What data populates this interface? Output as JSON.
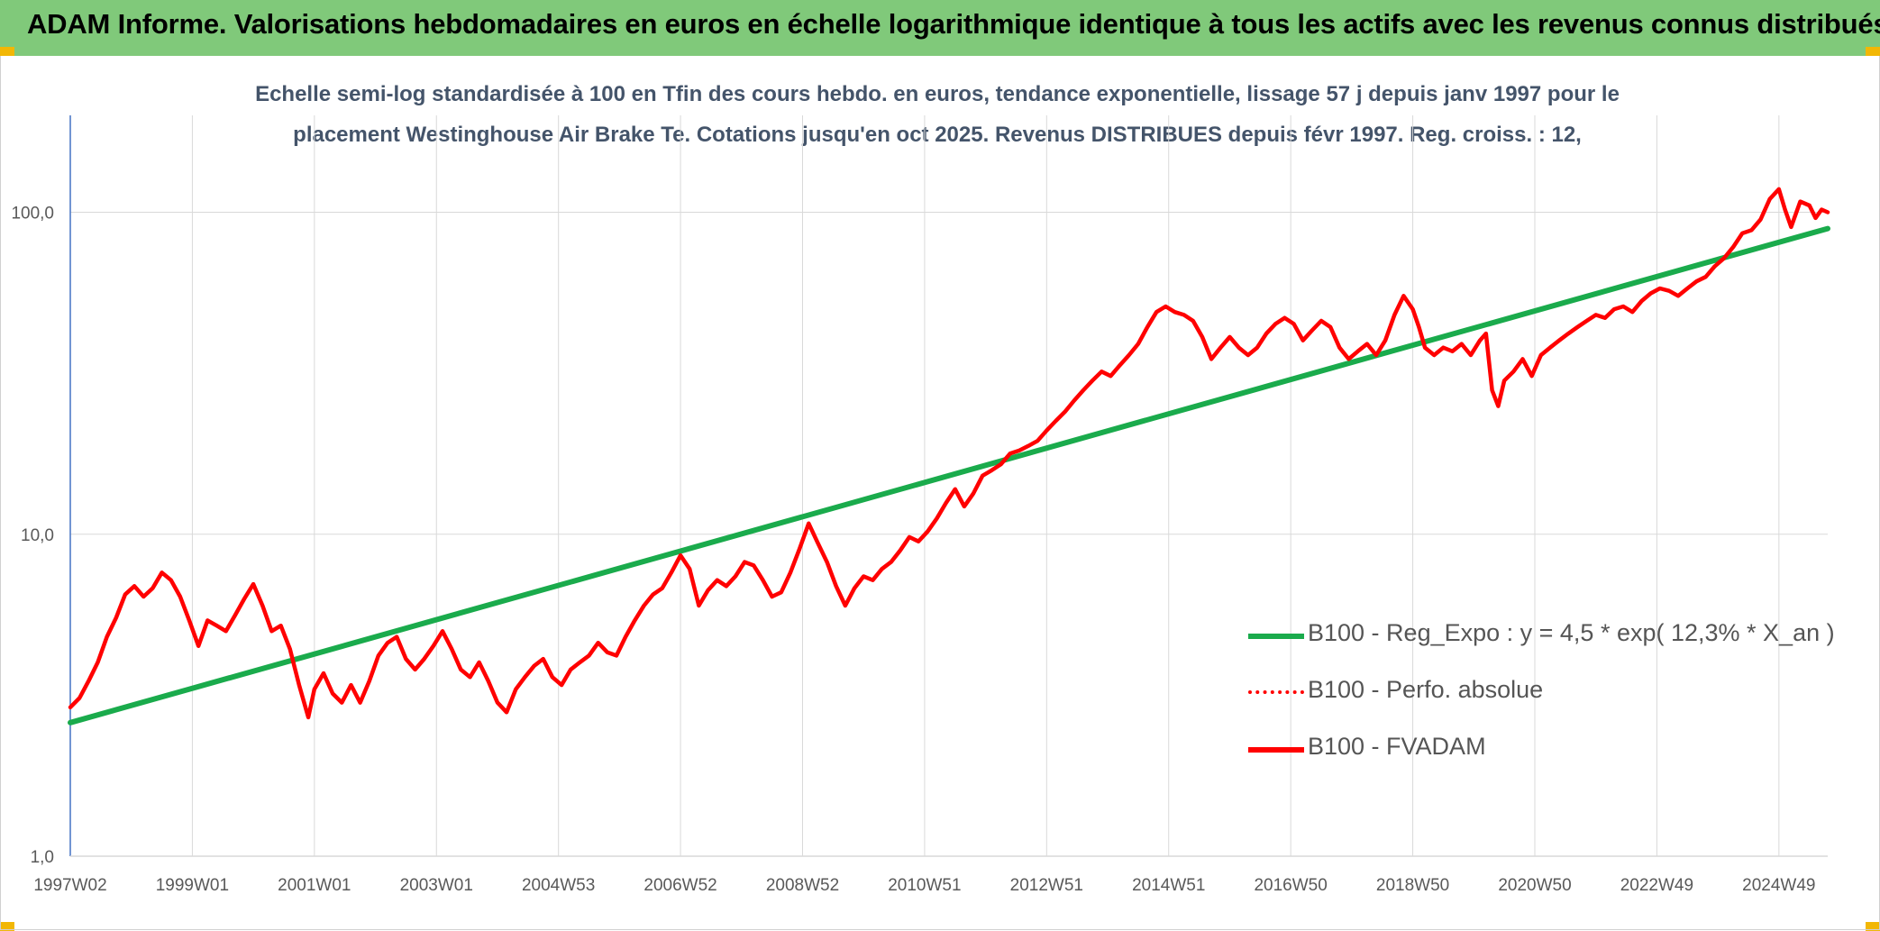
{
  "header": {
    "title": "ADAM Informe. Valorisations hebdomadaires en euros en échelle logarithmique identique à tous les actifs avec les revenus connus distribués"
  },
  "colors": {
    "banner": "#80c97a",
    "corner": "#f2b705",
    "regression": "#1aab4c",
    "fvadam": "#ff0000",
    "perfo": "#ff0000",
    "grid": "#d9d9d9",
    "axis": "#4472c4",
    "text": "#595959"
  },
  "chart_data": {
    "type": "line",
    "title_line1": "Echelle semi-log standardisée à 100 en Tfin des cours hebdo. en euros, tendance exponentielle, lissage 57 j depuis janv 1997 pour le",
    "title_line2": "placement Westinghouse Air Brake Te. Cotations jusqu'en oct 2025. Revenus DISTRIBUES depuis févr 1997. Reg. croiss. : 12,",
    "y_scale": "log",
    "ylim": [
      1,
      200
    ],
    "y_ticks": [
      {
        "value": 1,
        "label": "1,0"
      },
      {
        "value": 10,
        "label": "10,0"
      },
      {
        "value": 100,
        "label": "100,0"
      }
    ],
    "x_range": [
      1997.0,
      2025.8
    ],
    "x_ticks": [
      {
        "x": 1997.0,
        "label": "1997W02"
      },
      {
        "x": 1999.0,
        "label": "1999W01"
      },
      {
        "x": 2001.0,
        "label": "2001W01"
      },
      {
        "x": 2003.0,
        "label": "2003W01"
      },
      {
        "x": 2005.0,
        "label": "2004W53"
      },
      {
        "x": 2007.0,
        "label": "2006W52"
      },
      {
        "x": 2009.0,
        "label": "2008W52"
      },
      {
        "x": 2011.0,
        "label": "2010W51"
      },
      {
        "x": 2013.0,
        "label": "2012W51"
      },
      {
        "x": 2015.0,
        "label": "2014W51"
      },
      {
        "x": 2017.0,
        "label": "2016W50"
      },
      {
        "x": 2019.0,
        "label": "2018W50"
      },
      {
        "x": 2021.0,
        "label": "2020W50"
      },
      {
        "x": 2023.0,
        "label": "2022W49"
      },
      {
        "x": 2025.0,
        "label": "2024W49"
      }
    ],
    "grid": true,
    "legend_position": "bottom-right",
    "series": [
      {
        "name": "B100 - Reg_Expo : y = 4,5 * exp( 12,3% *  X_an )",
        "style": "solid-thick",
        "color": "#1aab4c",
        "points": [
          [
            1997.0,
            2.6
          ],
          [
            2025.8,
            89
          ]
        ]
      },
      {
        "name": "B100 - Perfo. absolue",
        "style": "dotted",
        "color": "#ff0000",
        "points": []
      },
      {
        "name": "B100 - FVADAM",
        "style": "solid",
        "color": "#ff0000",
        "points": [
          [
            1997.0,
            2.9
          ],
          [
            1997.15,
            3.1
          ],
          [
            1997.3,
            3.5
          ],
          [
            1997.45,
            4.0
          ],
          [
            1997.6,
            4.8
          ],
          [
            1997.75,
            5.5
          ],
          [
            1997.9,
            6.5
          ],
          [
            1998.05,
            6.9
          ],
          [
            1998.2,
            6.4
          ],
          [
            1998.35,
            6.8
          ],
          [
            1998.5,
            7.6
          ],
          [
            1998.65,
            7.2
          ],
          [
            1998.8,
            6.4
          ],
          [
            1998.95,
            5.4
          ],
          [
            1999.1,
            4.5
          ],
          [
            1999.25,
            5.4
          ],
          [
            1999.4,
            5.2
          ],
          [
            1999.55,
            5.0
          ],
          [
            1999.7,
            5.6
          ],
          [
            1999.85,
            6.3
          ],
          [
            2000.0,
            7.0
          ],
          [
            2000.15,
            6.0
          ],
          [
            2000.3,
            5.0
          ],
          [
            2000.45,
            5.2
          ],
          [
            2000.6,
            4.4
          ],
          [
            2000.75,
            3.4
          ],
          [
            2000.9,
            2.7
          ],
          [
            2001.0,
            3.3
          ],
          [
            2001.15,
            3.7
          ],
          [
            2001.3,
            3.2
          ],
          [
            2001.45,
            3.0
          ],
          [
            2001.6,
            3.4
          ],
          [
            2001.75,
            3.0
          ],
          [
            2001.9,
            3.5
          ],
          [
            2002.05,
            4.2
          ],
          [
            2002.2,
            4.6
          ],
          [
            2002.35,
            4.8
          ],
          [
            2002.5,
            4.1
          ],
          [
            2002.65,
            3.8
          ],
          [
            2002.8,
            4.1
          ],
          [
            2002.95,
            4.5
          ],
          [
            2003.1,
            5.0
          ],
          [
            2003.25,
            4.4
          ],
          [
            2003.4,
            3.8
          ],
          [
            2003.55,
            3.6
          ],
          [
            2003.7,
            4.0
          ],
          [
            2003.85,
            3.5
          ],
          [
            2004.0,
            3.0
          ],
          [
            2004.15,
            2.8
          ],
          [
            2004.3,
            3.3
          ],
          [
            2004.45,
            3.6
          ],
          [
            2004.6,
            3.9
          ],
          [
            2004.75,
            4.1
          ],
          [
            2004.9,
            3.6
          ],
          [
            2005.05,
            3.4
          ],
          [
            2005.2,
            3.8
          ],
          [
            2005.35,
            4.0
          ],
          [
            2005.5,
            4.2
          ],
          [
            2005.65,
            4.6
          ],
          [
            2005.8,
            4.3
          ],
          [
            2005.95,
            4.2
          ],
          [
            2006.1,
            4.8
          ],
          [
            2006.25,
            5.4
          ],
          [
            2006.4,
            6.0
          ],
          [
            2006.55,
            6.5
          ],
          [
            2006.7,
            6.8
          ],
          [
            2006.85,
            7.6
          ],
          [
            2007.0,
            8.6
          ],
          [
            2007.15,
            7.8
          ],
          [
            2007.3,
            6.0
          ],
          [
            2007.45,
            6.7
          ],
          [
            2007.6,
            7.2
          ],
          [
            2007.75,
            6.9
          ],
          [
            2007.9,
            7.4
          ],
          [
            2008.05,
            8.2
          ],
          [
            2008.2,
            8.0
          ],
          [
            2008.35,
            7.2
          ],
          [
            2008.5,
            6.4
          ],
          [
            2008.65,
            6.6
          ],
          [
            2008.8,
            7.6
          ],
          [
            2008.95,
            9.0
          ],
          [
            2009.1,
            10.8
          ],
          [
            2009.25,
            9.4
          ],
          [
            2009.4,
            8.2
          ],
          [
            2009.55,
            6.9
          ],
          [
            2009.7,
            6.0
          ],
          [
            2009.85,
            6.8
          ],
          [
            2010.0,
            7.4
          ],
          [
            2010.15,
            7.2
          ],
          [
            2010.3,
            7.8
          ],
          [
            2010.45,
            8.2
          ],
          [
            2010.6,
            8.9
          ],
          [
            2010.75,
            9.8
          ],
          [
            2010.9,
            9.5
          ],
          [
            2011.05,
            10.2
          ],
          [
            2011.2,
            11.2
          ],
          [
            2011.35,
            12.5
          ],
          [
            2011.5,
            13.8
          ],
          [
            2011.65,
            12.2
          ],
          [
            2011.8,
            13.4
          ],
          [
            2011.95,
            15.2
          ],
          [
            2012.1,
            15.8
          ],
          [
            2012.25,
            16.5
          ],
          [
            2012.4,
            17.8
          ],
          [
            2012.55,
            18.2
          ],
          [
            2012.7,
            18.8
          ],
          [
            2012.85,
            19.5
          ],
          [
            2013.0,
            21.0
          ],
          [
            2013.15,
            22.5
          ],
          [
            2013.3,
            24.0
          ],
          [
            2013.45,
            26.0
          ],
          [
            2013.6,
            28.0
          ],
          [
            2013.75,
            30.0
          ],
          [
            2013.9,
            32.0
          ],
          [
            2014.05,
            31.0
          ],
          [
            2014.2,
            33.5
          ],
          [
            2014.35,
            36.0
          ],
          [
            2014.5,
            39.0
          ],
          [
            2014.65,
            44.0
          ],
          [
            2014.8,
            49.0
          ],
          [
            2014.95,
            51.0
          ],
          [
            2015.1,
            49.0
          ],
          [
            2015.25,
            48.0
          ],
          [
            2015.4,
            46.0
          ],
          [
            2015.55,
            41.0
          ],
          [
            2015.7,
            35.0
          ],
          [
            2015.85,
            38.0
          ],
          [
            2016.0,
            41.0
          ],
          [
            2016.15,
            38.0
          ],
          [
            2016.3,
            36.0
          ],
          [
            2016.45,
            38.0
          ],
          [
            2016.6,
            42.0
          ],
          [
            2016.75,
            45.0
          ],
          [
            2016.9,
            47.0
          ],
          [
            2017.05,
            45.0
          ],
          [
            2017.2,
            40.0
          ],
          [
            2017.35,
            43.0
          ],
          [
            2017.5,
            46.0
          ],
          [
            2017.65,
            44.0
          ],
          [
            2017.8,
            38.0
          ],
          [
            2017.95,
            35.0
          ],
          [
            2018.1,
            37.0
          ],
          [
            2018.25,
            39.0
          ],
          [
            2018.4,
            36.0
          ],
          [
            2018.55,
            40.0
          ],
          [
            2018.7,
            48.0
          ],
          [
            2018.85,
            55.0
          ],
          [
            2019.0,
            50.0
          ],
          [
            2019.1,
            44.0
          ],
          [
            2019.2,
            38.0
          ],
          [
            2019.35,
            36.0
          ],
          [
            2019.5,
            38.0
          ],
          [
            2019.65,
            37.0
          ],
          [
            2019.8,
            39.0
          ],
          [
            2019.95,
            36.0
          ],
          [
            2020.1,
            40.0
          ],
          [
            2020.2,
            42.0
          ],
          [
            2020.3,
            28.0
          ],
          [
            2020.4,
            25.0
          ],
          [
            2020.5,
            30.0
          ],
          [
            2020.65,
            32.0
          ],
          [
            2020.8,
            35.0
          ],
          [
            2020.95,
            31.0
          ],
          [
            2021.1,
            36.0
          ],
          [
            2021.25,
            38.0
          ],
          [
            2021.4,
            40.0
          ],
          [
            2021.55,
            42.0
          ],
          [
            2021.7,
            44.0
          ],
          [
            2021.85,
            46.0
          ],
          [
            2022.0,
            48.0
          ],
          [
            2022.15,
            47.0
          ],
          [
            2022.3,
            50.0
          ],
          [
            2022.45,
            51.0
          ],
          [
            2022.6,
            49.0
          ],
          [
            2022.75,
            53.0
          ],
          [
            2022.9,
            56.0
          ],
          [
            2023.05,
            58.0
          ],
          [
            2023.2,
            57.0
          ],
          [
            2023.35,
            55.0
          ],
          [
            2023.5,
            58.0
          ],
          [
            2023.65,
            61.0
          ],
          [
            2023.8,
            63.0
          ],
          [
            2023.95,
            68.0
          ],
          [
            2024.1,
            72.0
          ],
          [
            2024.25,
            78.0
          ],
          [
            2024.4,
            86.0
          ],
          [
            2024.55,
            88.0
          ],
          [
            2024.7,
            95.0
          ],
          [
            2024.85,
            110.0
          ],
          [
            2025.0,
            118.0
          ],
          [
            2025.1,
            102.0
          ],
          [
            2025.2,
            90.0
          ],
          [
            2025.35,
            108.0
          ],
          [
            2025.5,
            105.0
          ],
          [
            2025.6,
            96.0
          ],
          [
            2025.7,
            102.0
          ],
          [
            2025.8,
            100.0
          ]
        ]
      }
    ]
  }
}
